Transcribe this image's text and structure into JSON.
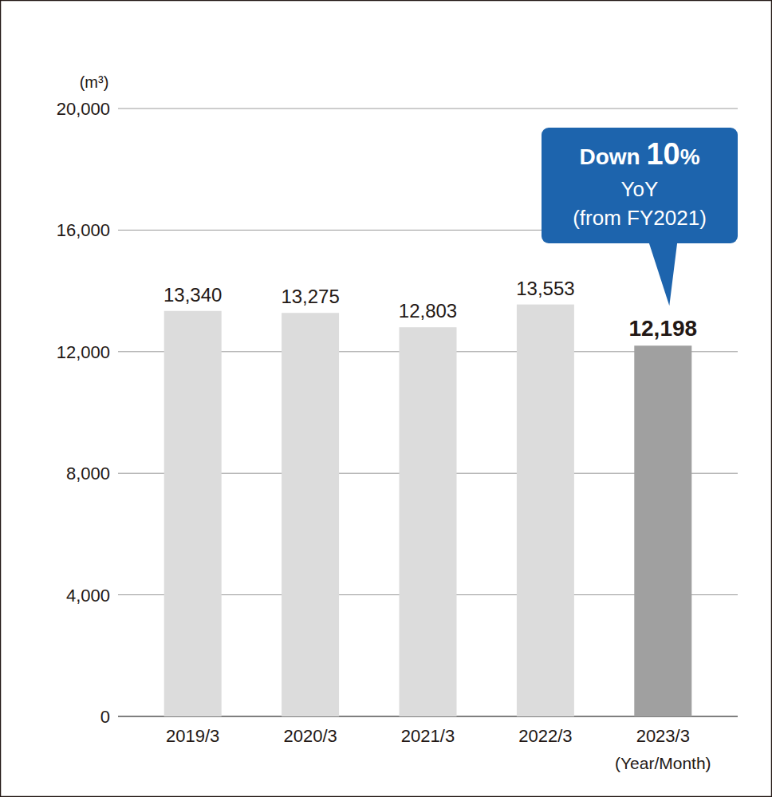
{
  "chart_data": {
    "type": "bar",
    "y_label": "(m³)",
    "x_label": "(Year/Month)",
    "categories": [
      "2019/3",
      "2020/3",
      "2021/3",
      "2022/3",
      "2023/3"
    ],
    "values": [
      13340,
      13275,
      12803,
      13553,
      12198
    ],
    "value_labels": [
      "13,340",
      "13,275",
      "12,803",
      "13,553",
      "12,198"
    ],
    "colors": [
      "#dcdcdc",
      "#dcdcdc",
      "#dcdcdc",
      "#dcdcdc",
      "#a0a0a0"
    ],
    "ylim": [
      0,
      20000
    ],
    "yticks": [
      0,
      {
        "value": 4000,
        "label": "4,000"
      },
      {
        "value": 8000,
        "label": "8,000"
      },
      {
        "value": 12000,
        "label": "12,000"
      },
      {
        "value": 16000,
        "label": "16,000"
      },
      {
        "value": 20000,
        "label": "20,000"
      }
    ],
    "grid": true,
    "data_labels": true,
    "annotations": [
      "Down 10%",
      "YoY",
      "(from FY2021)"
    ]
  }
}
